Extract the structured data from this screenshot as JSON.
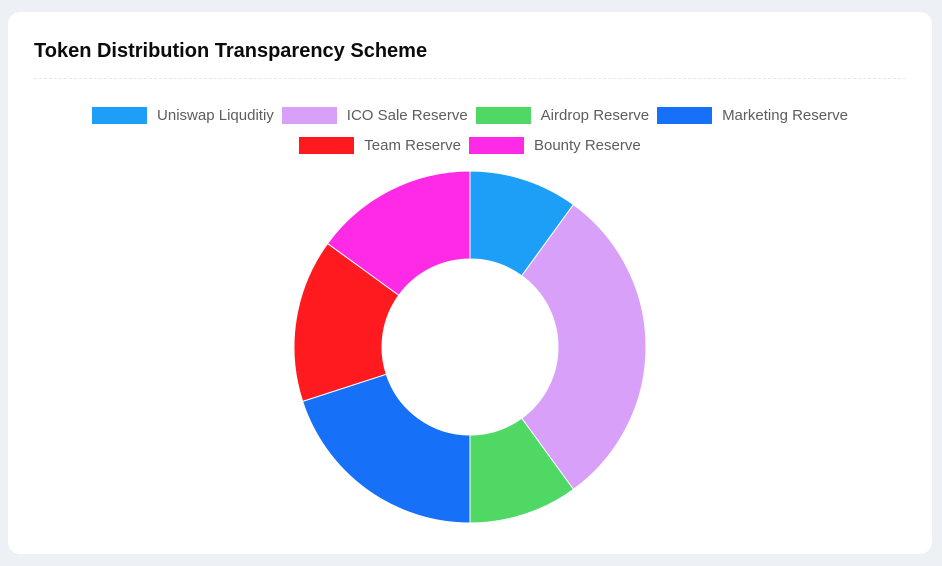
{
  "card": {
    "title": "Token Distribution Transparency Scheme"
  },
  "chart_data": {
    "type": "pie",
    "subtype": "doughnut",
    "title": "Token Distribution Transparency Scheme",
    "legend_position": "top",
    "categories": [
      "Uniswap Liquditiy",
      "ICO Sale Reserve",
      "Airdrop Reserve",
      "Marketing Reserve",
      "Team Reserve",
      "Bounty Reserve"
    ],
    "values": [
      10,
      30,
      10,
      20,
      15,
      15
    ],
    "colors": [
      "#1e9ff7",
      "#d9a0fa",
      "#4fd964",
      "#1670f8",
      "#ff1a1f",
      "#ff2ae6"
    ],
    "start_angle": "top",
    "direction": "clockwise"
  }
}
